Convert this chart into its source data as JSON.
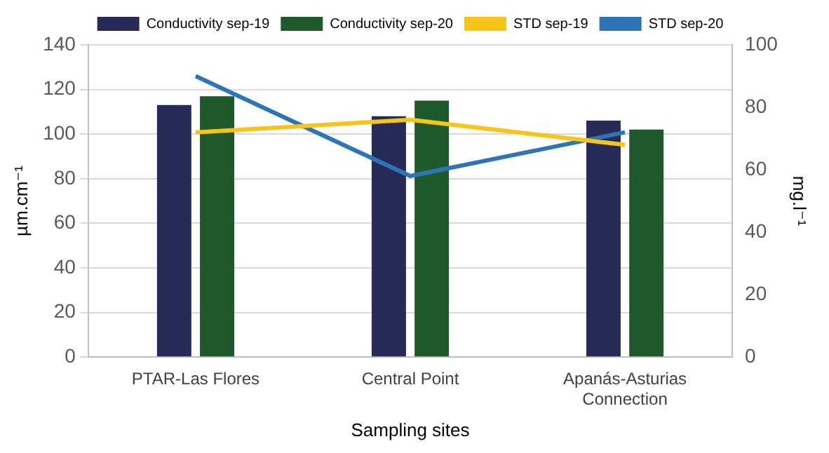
{
  "chart_data": {
    "type": "bar",
    "xlabel": "Sampling sites",
    "ylabel": "µm.cm⁻¹",
    "y2label": "mg.l⁻¹",
    "categories": [
      [
        "PTAR-Las Flores"
      ],
      [
        "Central Point"
      ],
      [
        "Apanás-Asturias",
        "Connection"
      ]
    ],
    "series": [
      {
        "name": "Conductivity sep-19",
        "color": "#262b57",
        "values": [
          113,
          108,
          106
        ]
      },
      {
        "name": "Conductivity sep-20",
        "color": "#1f5a2c",
        "values": [
          117,
          115,
          102
        ]
      },
      {
        "name": "STD sep-19",
        "type": "line",
        "axis": "y2",
        "color": "#f7c51a",
        "values": [
          72,
          76,
          68
        ]
      },
      {
        "name": "STD sep-20",
        "type": "line",
        "axis": "y2",
        "color": "#2e75b6",
        "values": [
          90,
          58,
          72
        ]
      }
    ],
    "ylim": [
      0,
      140
    ],
    "yticks": [
      0,
      20,
      40,
      60,
      80,
      100,
      120,
      140
    ],
    "y2lim": [
      0,
      100
    ],
    "y2ticks": [
      0,
      20,
      40,
      60,
      80,
      100
    ],
    "grid": "y",
    "legend": "top",
    "marker": "none"
  }
}
